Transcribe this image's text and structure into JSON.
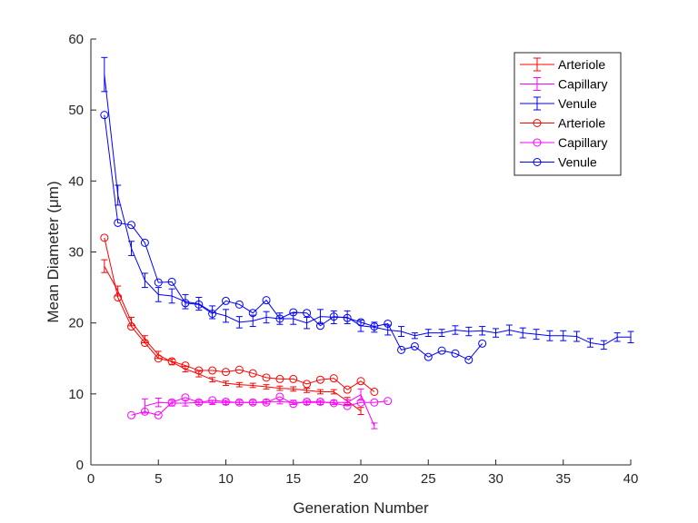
{
  "chart_data": {
    "type": "line",
    "title": "",
    "xlabel": "Generation Number",
    "ylabel": "Mean Diameter (μm)",
    "xlim": [
      0,
      40
    ],
    "ylim": [
      0,
      60
    ],
    "xticks": [
      0,
      5,
      10,
      15,
      20,
      25,
      30,
      35,
      40
    ],
    "yticks": [
      0,
      10,
      20,
      30,
      40,
      50,
      60
    ],
    "grid": false,
    "legend_position": "top-right",
    "series": [
      {
        "name": "Arteriole",
        "color": "#ff0000",
        "marker": "errorbar",
        "x": [
          1,
          2,
          3,
          4,
          5,
          6,
          7,
          8,
          9,
          10,
          11,
          12,
          13,
          14,
          15,
          16,
          17,
          18,
          19,
          20
        ],
        "y": [
          28.0,
          24.5,
          20.2,
          17.7,
          15.5,
          14.5,
          13.5,
          12.8,
          12.0,
          11.5,
          11.3,
          11.2,
          11.0,
          10.8,
          10.7,
          10.5,
          10.3,
          10.3,
          9.0,
          7.6
        ],
        "err": [
          0.9,
          0.7,
          0.6,
          0.5,
          0.5,
          0.4,
          0.4,
          0.4,
          0.3,
          0.3,
          0.3,
          0.3,
          0.3,
          0.3,
          0.3,
          0.3,
          0.3,
          0.3,
          0.5,
          0.5
        ]
      },
      {
        "name": "Capillary",
        "color": "#ff00ff",
        "marker": "errorbar",
        "x": [
          4,
          5,
          6,
          7,
          8,
          9,
          10,
          11,
          12,
          13,
          14,
          15,
          16,
          17,
          18,
          19,
          20,
          21
        ],
        "y": [
          8.3,
          8.8,
          8.7,
          8.7,
          8.8,
          8.8,
          8.8,
          8.8,
          8.8,
          8.9,
          8.9,
          8.8,
          8.8,
          8.8,
          8.8,
          8.8,
          9.9,
          5.5
        ],
        "err": [
          1.0,
          0.6,
          0.4,
          0.4,
          0.3,
          0.3,
          0.3,
          0.3,
          0.3,
          0.3,
          0.3,
          0.3,
          0.3,
          0.3,
          0.3,
          0.4,
          0.8,
          0.4
        ]
      },
      {
        "name": "Venule",
        "color": "#0000ff",
        "marker": "errorbar",
        "x": [
          1,
          2,
          3,
          4,
          5,
          6,
          7,
          8,
          9,
          10,
          11,
          12,
          13,
          14,
          15,
          16,
          17,
          18,
          19,
          20,
          21,
          22,
          23,
          24,
          25,
          26,
          27,
          28,
          29,
          30,
          31,
          32,
          33,
          34,
          35,
          36,
          37,
          38,
          39,
          40
        ],
        "y": [
          55.0,
          38.0,
          30.5,
          26.0,
          24.0,
          23.8,
          23.0,
          22.7,
          21.5,
          21.0,
          20.1,
          20.3,
          20.8,
          20.6,
          20.6,
          20.0,
          20.9,
          20.8,
          20.8,
          19.6,
          19.4,
          19.0,
          18.8,
          18.2,
          18.6,
          18.6,
          19.0,
          18.8,
          18.9,
          18.6,
          19.0,
          18.6,
          18.4,
          18.2,
          18.2,
          18.1,
          17.2,
          16.9,
          18.0,
          18.0
        ],
        "err": [
          2.4,
          1.4,
          1.0,
          1.0,
          1.0,
          1.0,
          1.0,
          0.9,
          0.9,
          0.9,
          0.8,
          0.8,
          0.8,
          0.8,
          0.8,
          0.8,
          1.0,
          0.9,
          0.9,
          0.8,
          0.7,
          0.7,
          0.7,
          0.4,
          0.5,
          0.5,
          0.6,
          0.6,
          0.6,
          0.6,
          0.7,
          0.7,
          0.7,
          0.7,
          0.7,
          0.7,
          0.6,
          0.6,
          0.6,
          0.8
        ]
      },
      {
        "name": "Arteriole",
        "color": "#ff0000",
        "marker": "circle",
        "x": [
          1,
          2,
          3,
          4,
          5,
          6,
          7,
          8,
          9,
          10,
          11,
          12,
          13,
          14,
          15,
          16,
          17,
          18,
          19,
          20,
          21
        ],
        "y": [
          32.0,
          23.6,
          19.5,
          17.2,
          15.0,
          14.6,
          14.0,
          13.3,
          13.3,
          13.1,
          13.4,
          12.9,
          12.3,
          12.1,
          12.1,
          11.4,
          12.0,
          12.2,
          10.6,
          11.8,
          10.3
        ]
      },
      {
        "name": "Capillary",
        "color": "#ff00ff",
        "marker": "circle",
        "x": [
          3,
          4,
          5,
          6,
          7,
          8,
          9,
          10,
          11,
          12,
          13,
          14,
          15,
          16,
          17,
          18,
          19,
          20,
          21,
          22
        ],
        "y": [
          7.0,
          7.5,
          7.0,
          8.8,
          9.5,
          8.8,
          9.1,
          8.9,
          8.8,
          8.8,
          8.8,
          9.6,
          8.6,
          8.9,
          8.9,
          8.7,
          8.3,
          8.8,
          8.8,
          9.0
        ]
      },
      {
        "name": "Venule",
        "color": "#0000ff",
        "marker": "circle",
        "x": [
          1,
          2,
          3,
          4,
          5,
          6,
          7,
          8,
          9,
          10,
          11,
          12,
          13,
          14,
          15,
          16,
          17,
          18,
          19,
          20,
          21,
          22,
          23,
          24,
          25,
          26,
          27,
          28,
          29
        ],
        "y": [
          49.3,
          34.1,
          33.8,
          31.3,
          25.7,
          25.8,
          22.8,
          22.6,
          21.3,
          23.1,
          22.6,
          21.4,
          23.2,
          20.6,
          21.5,
          21.4,
          19.6,
          20.9,
          20.7,
          20.1,
          19.5,
          19.9,
          16.2,
          16.7,
          15.2,
          16.1,
          15.7,
          14.8,
          17.1
        ]
      }
    ]
  }
}
